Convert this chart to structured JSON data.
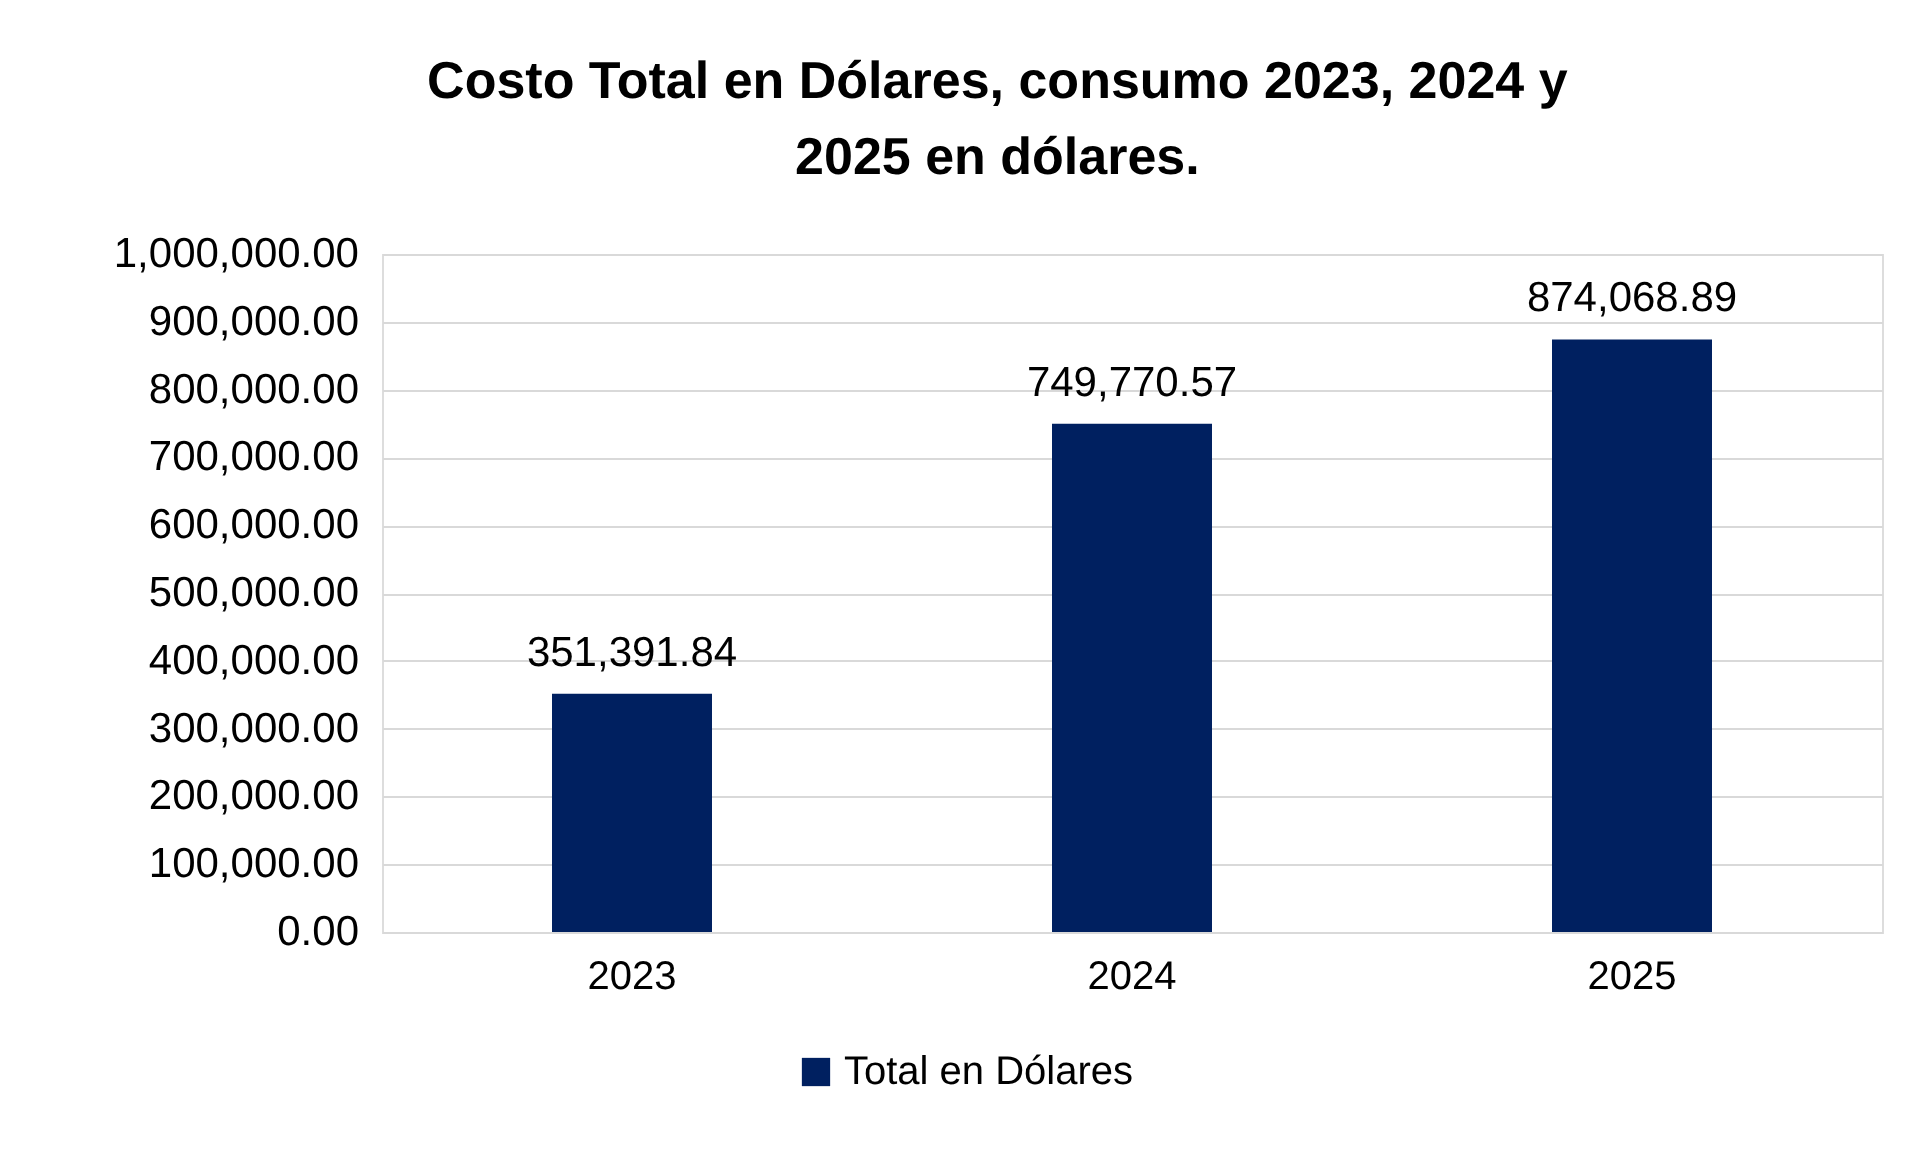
{
  "chart_data": {
    "type": "bar",
    "title": "Costo Total en Dólares, consumo 2023, 2024 y 2025 en dólares.",
    "categories": [
      "2023",
      "2024",
      "2025"
    ],
    "series": [
      {
        "name": "Total en Dólares",
        "color": "#002060",
        "values": [
          351391.84,
          749770.57,
          874068.89
        ]
      }
    ],
    "ylim": [
      0,
      1000000
    ],
    "yticks": [
      {
        "value": 0,
        "label": "0.00"
      },
      {
        "value": 100000,
        "label": "100,000.00"
      },
      {
        "value": 200000,
        "label": "200,000.00"
      },
      {
        "value": 300000,
        "label": "300,000.00"
      },
      {
        "value": 400000,
        "label": "400,000.00"
      },
      {
        "value": 500000,
        "label": "500,000.00"
      },
      {
        "value": 600000,
        "label": "600,000.00"
      },
      {
        "value": 700000,
        "label": "700,000.00"
      },
      {
        "value": 800000,
        "label": "800,000.00"
      },
      {
        "value": 900000,
        "label": "900,000.00"
      },
      {
        "value": 1000000,
        "label": "1,000,000.00"
      }
    ],
    "value_labels": [
      "351,391.84",
      "749,770.57",
      "874,068.89"
    ],
    "grid": "y",
    "legend": "bottom"
  }
}
